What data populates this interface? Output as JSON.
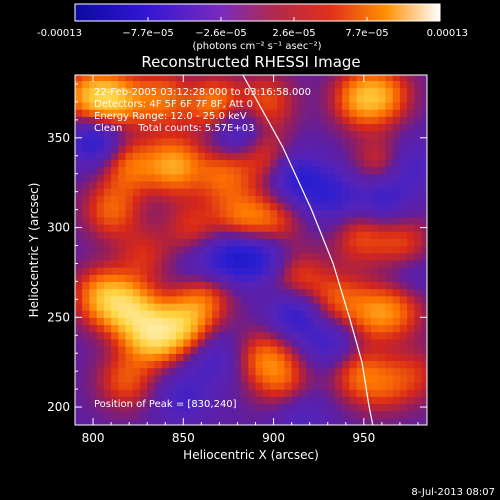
{
  "chart_data": {
    "type": "heatmap",
    "title": "Reconstructed RHESSI Image",
    "xlabel": "Heliocentric X (arcsec)",
    "ylabel": "Heliocentric Y (arcsec)",
    "xlim": [
      790,
      985
    ],
    "ylim": [
      190,
      385
    ],
    "x_ticks": [
      800,
      850,
      900,
      950
    ],
    "y_ticks": [
      200,
      250,
      300,
      350
    ],
    "colorbar": {
      "ticks": [
        "-0.00013",
        "−7.7e−05",
        "−2.6e−05",
        "2.6e−05",
        "7.7e−05",
        "0.00013"
      ],
      "unit_label": "(photons cm⁻² s⁻¹ asec⁻²)",
      "range": [
        -0.00013,
        0.00013
      ]
    },
    "annotations": [
      "22-Feb-2005 03:12:28.000 to 03:16:58.000",
      "Detectors: 4F 5F 6F 7F 8F, Att 0",
      "Energy Range: 12.0 - 25.0 keV",
      "Clean     Total counts: 5.57E+03"
    ],
    "peak_label": "Position of Peak = [830,240]",
    "limb_curve": [
      [
        883,
        385
      ],
      [
        905,
        345
      ],
      [
        921,
        310
      ],
      [
        933,
        280
      ],
      [
        942,
        250
      ],
      [
        949,
        225
      ],
      [
        953,
        200
      ],
      [
        955,
        190
      ]
    ],
    "intensity_field": [
      {
        "x": 797,
        "y": 373,
        "v": 0.7
      },
      {
        "x": 812,
        "y": 371,
        "v": 0.85
      },
      {
        "x": 838,
        "y": 372,
        "v": 0.6
      },
      {
        "x": 868,
        "y": 368,
        "v": 0.75
      },
      {
        "x": 896,
        "y": 370,
        "v": 0.5
      },
      {
        "x": 948,
        "y": 372,
        "v": 0.7
      },
      {
        "x": 962,
        "y": 374,
        "v": 0.55
      },
      {
        "x": 802,
        "y": 350,
        "v": -0.65
      },
      {
        "x": 820,
        "y": 335,
        "v": 0.6
      },
      {
        "x": 845,
        "y": 335,
        "v": 0.8
      },
      {
        "x": 872,
        "y": 330,
        "v": 0.55
      },
      {
        "x": 895,
        "y": 340,
        "v": 0.45
      },
      {
        "x": 960,
        "y": 335,
        "v": 0.5
      },
      {
        "x": 810,
        "y": 310,
        "v": 0.55
      },
      {
        "x": 855,
        "y": 300,
        "v": 0.4
      },
      {
        "x": 882,
        "y": 305,
        "v": 0.6
      },
      {
        "x": 900,
        "y": 303,
        "v": 0.5
      },
      {
        "x": 913,
        "y": 272,
        "v": 0.5
      },
      {
        "x": 828,
        "y": 285,
        "v": 0.35
      },
      {
        "x": 948,
        "y": 295,
        "v": 0.45
      },
      {
        "x": 972,
        "y": 290,
        "v": 0.5
      },
      {
        "x": 805,
        "y": 262,
        "v": 0.75
      },
      {
        "x": 820,
        "y": 255,
        "v": 0.85
      },
      {
        "x": 833,
        "y": 240,
        "v": 1.0
      },
      {
        "x": 850,
        "y": 246,
        "v": 0.8
      },
      {
        "x": 862,
        "y": 262,
        "v": 0.55
      },
      {
        "x": 935,
        "y": 260,
        "v": 0.5
      },
      {
        "x": 955,
        "y": 252,
        "v": 0.55
      },
      {
        "x": 970,
        "y": 255,
        "v": 0.45
      },
      {
        "x": 818,
        "y": 215,
        "v": 0.5
      },
      {
        "x": 895,
        "y": 228,
        "v": 0.55
      },
      {
        "x": 905,
        "y": 215,
        "v": 0.45
      },
      {
        "x": 945,
        "y": 220,
        "v": 0.5
      },
      {
        "x": 960,
        "y": 212,
        "v": 0.4
      },
      {
        "x": 978,
        "y": 218,
        "v": 0.35
      },
      {
        "x": 867,
        "y": 228,
        "v": -0.35
      },
      {
        "x": 879,
        "y": 355,
        "v": -0.6
      },
      {
        "x": 912,
        "y": 328,
        "v": -0.55
      },
      {
        "x": 932,
        "y": 318,
        "v": -0.45
      },
      {
        "x": 878,
        "y": 285,
        "v": -0.6
      },
      {
        "x": 895,
        "y": 285,
        "v": -0.5
      },
      {
        "x": 912,
        "y": 253,
        "v": -0.55
      },
      {
        "x": 960,
        "y": 318,
        "v": -0.5
      },
      {
        "x": 933,
        "y": 235,
        "v": -0.45
      },
      {
        "x": 975,
        "y": 335,
        "v": -0.4
      },
      {
        "x": 860,
        "y": 278,
        "v": -0.3
      },
      {
        "x": 975,
        "y": 275,
        "v": -0.3
      },
      {
        "x": 850,
        "y": 205,
        "v": -0.35
      },
      {
        "x": 915,
        "y": 195,
        "v": -0.3
      }
    ]
  },
  "footer": {
    "timestamp": "8-Jul-2013 08:07"
  }
}
